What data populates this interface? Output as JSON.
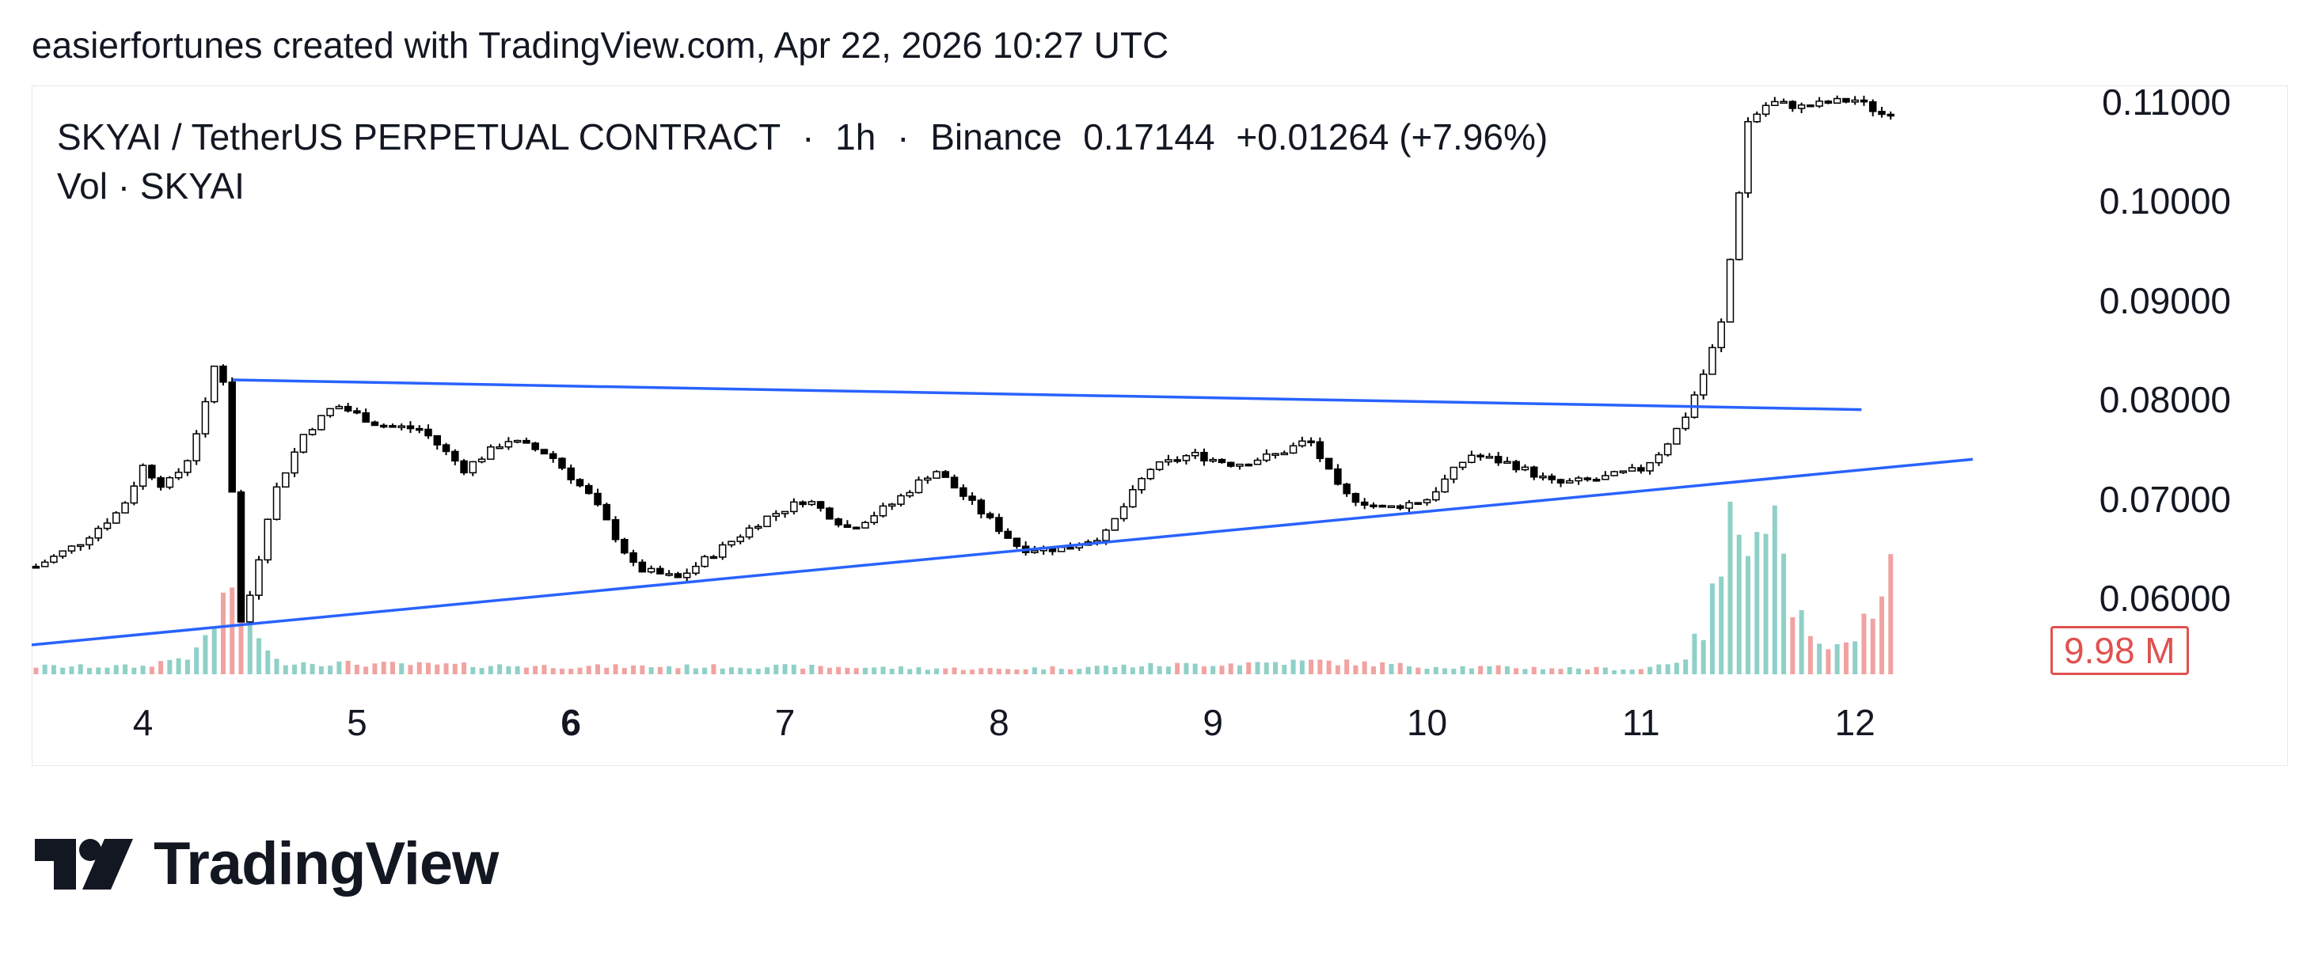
{
  "attribution": "easierfortunes created with TradingView.com, Apr 22, 2026 10:27 UTC",
  "legend": {
    "symbol": "SKYAI / TetherUS PERPETUAL CONTRACT",
    "interval": "1h",
    "exchange": "Binance",
    "last": "0.17144",
    "change": "+0.01264 (+7.96%)",
    "separator": "·"
  },
  "volume_legend": {
    "name": "Vol",
    "symbol": "SKYAI"
  },
  "volume_badge": "9.98 M",
  "logo_text": "TradingView",
  "colors": {
    "candle": "#000000",
    "trendline": "#2962ff",
    "volume_up": "#8fd0c7",
    "volume_down": "#f0a3a1",
    "badge": "#e0514f"
  },
  "chart_data": {
    "type": "candlestick",
    "price_axis": [
      "0.11000",
      "0.10000",
      "0.09000",
      "0.08000",
      "0.07000",
      "0.06000"
    ],
    "x_tick_labels": [
      {
        "label": "4",
        "bold": false
      },
      {
        "label": "5",
        "bold": false
      },
      {
        "label": "6",
        "bold": true
      },
      {
        "label": "7",
        "bold": false
      },
      {
        "label": "8",
        "bold": false
      },
      {
        "label": "9",
        "bold": false
      },
      {
        "label": "10",
        "bold": false
      },
      {
        "label": "11",
        "bold": false
      },
      {
        "label": "12",
        "bold": false
      }
    ],
    "x_range": [
      3.48,
      12.95
    ],
    "y_range": [
      0.0525,
      0.1115
    ],
    "close_path": [
      [
        3.5,
        0.0632
      ],
      [
        3.7,
        0.0655
      ],
      [
        3.9,
        0.069
      ],
      [
        4.0,
        0.0733
      ],
      [
        4.1,
        0.0712
      ],
      [
        4.2,
        0.0735
      ],
      [
        4.3,
        0.08
      ],
      [
        4.36,
        0.086
      ],
      [
        4.42,
        0.07
      ],
      [
        4.46,
        0.057
      ],
      [
        4.52,
        0.062
      ],
      [
        4.6,
        0.07
      ],
      [
        4.75,
        0.0765
      ],
      [
        4.9,
        0.0795
      ],
      [
        5.1,
        0.0775
      ],
      [
        5.3,
        0.077
      ],
      [
        5.5,
        0.073
      ],
      [
        5.7,
        0.076
      ],
      [
        5.9,
        0.0745
      ],
      [
        6.1,
        0.07
      ],
      [
        6.3,
        0.063
      ],
      [
        6.5,
        0.062
      ],
      [
        6.7,
        0.065
      ],
      [
        6.9,
        0.068
      ],
      [
        7.1,
        0.07
      ],
      [
        7.3,
        0.067
      ],
      [
        7.5,
        0.0695
      ],
      [
        7.7,
        0.073
      ],
      [
        7.9,
        0.069
      ],
      [
        8.1,
        0.065
      ],
      [
        8.3,
        0.065
      ],
      [
        8.5,
        0.0665
      ],
      [
        8.7,
        0.073
      ],
      [
        8.9,
        0.0745
      ],
      [
        9.1,
        0.0735
      ],
      [
        9.3,
        0.0745
      ],
      [
        9.45,
        0.076
      ],
      [
        9.6,
        0.0705
      ],
      [
        9.8,
        0.069
      ],
      [
        10.0,
        0.07
      ],
      [
        10.2,
        0.0745
      ],
      [
        10.4,
        0.0735
      ],
      [
        10.6,
        0.0715
      ],
      [
        10.8,
        0.072
      ],
      [
        11.0,
        0.073
      ],
      [
        11.1,
        0.075
      ],
      [
        11.2,
        0.078
      ],
      [
        11.3,
        0.083
      ],
      [
        11.38,
        0.088
      ],
      [
        11.44,
        0.098
      ],
      [
        11.5,
        0.108
      ],
      [
        11.6,
        0.11
      ],
      [
        11.75,
        0.1095
      ],
      [
        11.9,
        0.11
      ],
      [
        12.0,
        0.1102
      ],
      [
        12.15,
        0.1085
      ],
      [
        12.2,
        0.11
      ]
    ],
    "trendlines": [
      {
        "name": "resistance",
        "x": [
          4.42,
          12.03
        ],
        "y": [
          0.082,
          0.079
        ]
      },
      {
        "name": "support",
        "x": [
          3.48,
          12.55
        ],
        "y": [
          0.0553,
          0.074
        ]
      }
    ],
    "volume_spikes": [
      [
        3.5,
        0.03
      ],
      [
        4.0,
        0.03
      ],
      [
        4.25,
        0.08
      ],
      [
        4.35,
        0.22
      ],
      [
        4.42,
        0.37
      ],
      [
        4.5,
        0.24
      ],
      [
        4.6,
        0.05
      ],
      [
        5.0,
        0.04
      ],
      [
        6.0,
        0.03
      ],
      [
        7.0,
        0.03
      ],
      [
        8.0,
        0.02
      ],
      [
        9.5,
        0.05
      ],
      [
        10.0,
        0.03
      ],
      [
        11.0,
        0.02
      ],
      [
        11.2,
        0.06
      ],
      [
        11.3,
        0.18
      ],
      [
        11.42,
        0.55
      ],
      [
        11.55,
        0.7
      ],
      [
        11.62,
        0.62
      ],
      [
        11.7,
        0.3
      ],
      [
        11.8,
        0.1
      ],
      [
        12.0,
        0.1
      ],
      [
        12.15,
        0.46
      ],
      [
        12.3,
        0.15
      ],
      [
        12.4,
        0.24
      ],
      [
        12.5,
        0.12
      ],
      [
        12.7,
        0.04
      ]
    ]
  }
}
